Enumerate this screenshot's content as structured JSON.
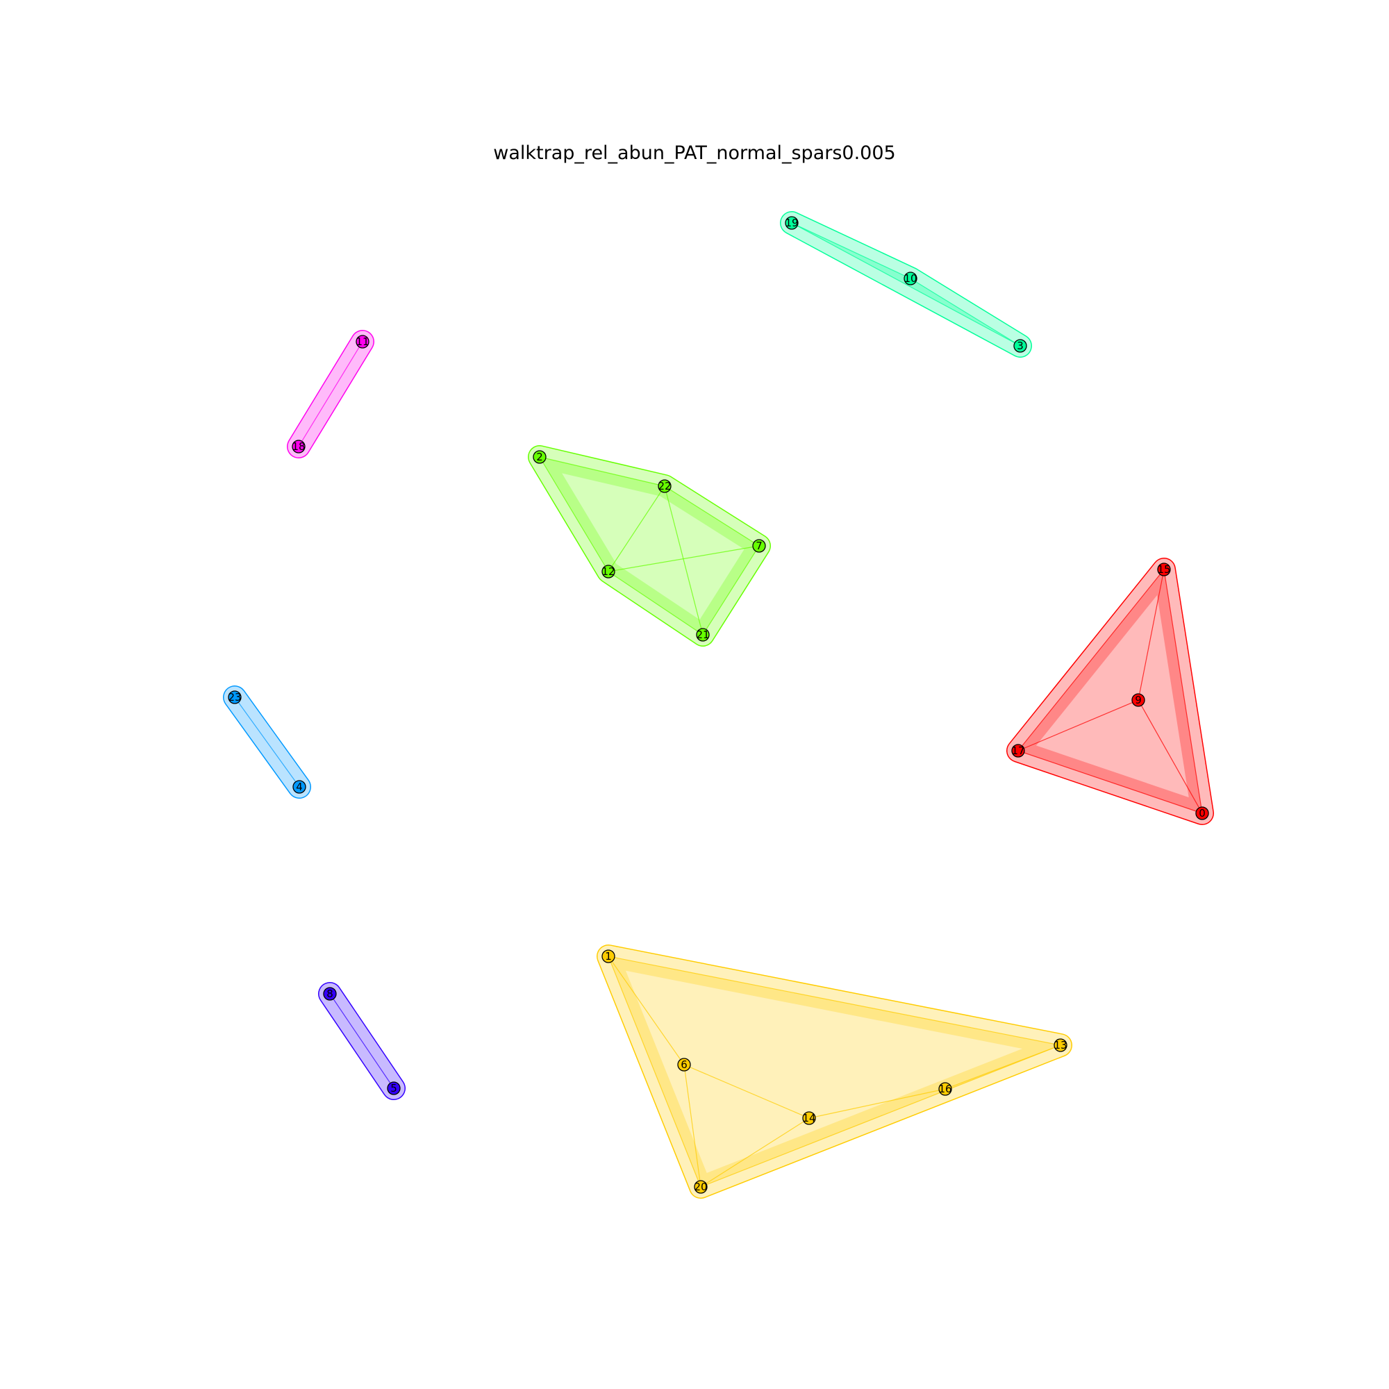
{
  "title": "walktrap_rel_abun_PAT_normal_spars0.005",
  "communities": [
    {
      "color": "#00ff99",
      "nodes": [
        "19",
        "10",
        "3"
      ]
    },
    {
      "color": "#ff00ee",
      "nodes": [
        "11",
        "18"
      ]
    },
    {
      "color": "#66ff00",
      "nodes": [
        "2",
        "22",
        "7",
        "12",
        "21"
      ]
    },
    {
      "color": "#ff0000",
      "nodes": [
        "15",
        "9",
        "17",
        "0"
      ]
    },
    {
      "color": "#0099ff",
      "nodes": [
        "23",
        "4"
      ]
    },
    {
      "color": "#3300ff",
      "nodes": [
        "8",
        "5"
      ]
    },
    {
      "color": "#ffcc00",
      "nodes": [
        "1",
        "13",
        "6",
        "16",
        "14",
        "20"
      ]
    }
  ],
  "edges": [
    [
      "19",
      "10"
    ],
    [
      "19",
      "3"
    ],
    [
      "10",
      "3"
    ],
    [
      "11",
      "18"
    ],
    [
      "2",
      "22"
    ],
    [
      "2",
      "12"
    ],
    [
      "22",
      "12"
    ],
    [
      "22",
      "7"
    ],
    [
      "22",
      "21"
    ],
    [
      "12",
      "7"
    ],
    [
      "12",
      "21"
    ],
    [
      "7",
      "21"
    ],
    [
      "15",
      "9"
    ],
    [
      "15",
      "17"
    ],
    [
      "15",
      "0"
    ],
    [
      "9",
      "17"
    ],
    [
      "9",
      "0"
    ],
    [
      "17",
      "0"
    ],
    [
      "23",
      "4"
    ],
    [
      "8",
      "5"
    ],
    [
      "1",
      "6"
    ],
    [
      "1",
      "13"
    ],
    [
      "1",
      "20"
    ],
    [
      "6",
      "14"
    ],
    [
      "6",
      "20"
    ],
    [
      "14",
      "16"
    ],
    [
      "14",
      "20"
    ],
    [
      "16",
      "13"
    ],
    [
      "13",
      "20"
    ]
  ]
}
